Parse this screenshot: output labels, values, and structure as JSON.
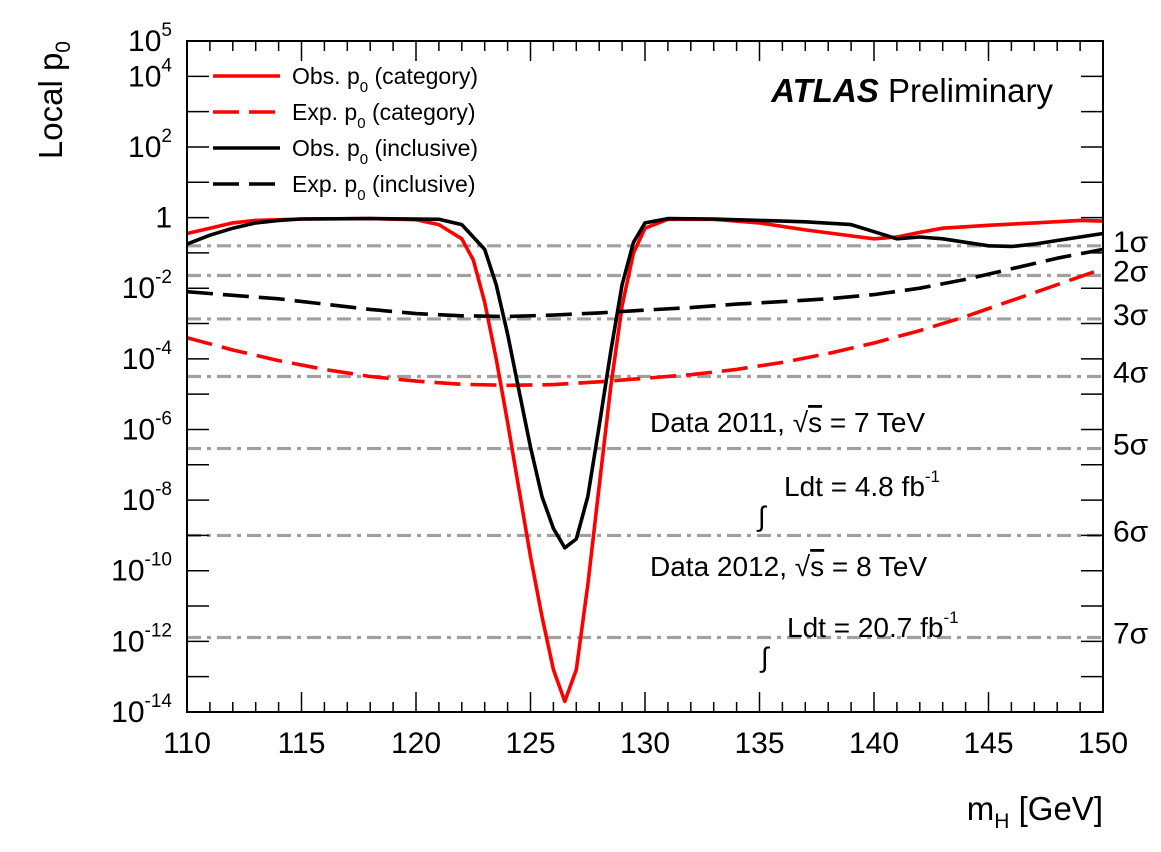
{
  "chart_data": {
    "type": "line",
    "atlas": {
      "bold": "ATLAS",
      "text": "Preliminary"
    },
    "xlabel": {
      "main": "m",
      "sub": "H",
      "unit": " [GeV]"
    },
    "ylabel": {
      "main": "Local p",
      "sub": "0"
    },
    "xlim": [
      110,
      150
    ],
    "ylog_range": [
      -14,
      5
    ],
    "x_ticks": [
      110,
      115,
      120,
      125,
      130,
      135,
      140,
      145,
      150
    ],
    "y_ticks": [
      {
        "exp": -14,
        "base": "10",
        "sup": "-14"
      },
      {
        "exp": -12,
        "base": "10",
        "sup": "-12"
      },
      {
        "exp": -10,
        "base": "10",
        "sup": "-10"
      },
      {
        "exp": -8,
        "base": "10",
        "sup": "-8"
      },
      {
        "exp": -6,
        "base": "10",
        "sup": "-6"
      },
      {
        "exp": -4,
        "base": "10",
        "sup": "-4"
      },
      {
        "exp": -2,
        "base": "10",
        "sup": "-2"
      },
      {
        "exp": 0,
        "base": "1",
        "sup": ""
      },
      {
        "exp": 2,
        "base": "10",
        "sup": "2"
      },
      {
        "exp": 4,
        "base": "10",
        "sup": "4"
      },
      {
        "exp": 5,
        "base": "10",
        "sup": "5"
      }
    ],
    "sigma_lines": [
      {
        "label": "1σ",
        "log10p": -0.8
      },
      {
        "label": "2σ",
        "log10p": -1.64
      },
      {
        "label": "3σ",
        "log10p": -2.87
      },
      {
        "label": "4σ",
        "log10p": -4.5
      },
      {
        "label": "5σ",
        "log10p": -6.54
      },
      {
        "label": "6σ",
        "log10p": -9.0
      },
      {
        "label": "7σ",
        "log10p": -11.89
      }
    ],
    "series": [
      {
        "name": "Obs. p  (category)",
        "legend": {
          "pre": "Obs. p",
          "sub": "0",
          "post": " (category)"
        },
        "color": "#ff0000",
        "dash": "solid",
        "x": [
          110,
          111,
          112,
          113,
          115,
          118,
          120,
          121,
          122,
          122.5,
          123,
          123.5,
          124,
          124.5,
          125,
          125.5,
          126,
          126.5,
          127,
          127.5,
          128,
          128.5,
          129,
          129.5,
          130,
          131,
          133,
          135,
          137,
          139,
          140,
          141,
          142,
          143,
          145,
          147,
          149,
          150
        ],
        "y": [
          -0.45,
          -0.3,
          -0.15,
          -0.08,
          -0.04,
          -0.03,
          -0.06,
          -0.2,
          -0.6,
          -1.2,
          -2.4,
          -4.0,
          -5.8,
          -7.7,
          -9.6,
          -11.3,
          -12.8,
          -13.7,
          -12.8,
          -10.4,
          -7.6,
          -4.8,
          -2.5,
          -1.0,
          -0.3,
          -0.05,
          -0.05,
          -0.15,
          -0.35,
          -0.52,
          -0.6,
          -0.55,
          -0.42,
          -0.3,
          -0.22,
          -0.15,
          -0.08,
          -0.1
        ]
      },
      {
        "name": "Exp. p  (category)",
        "legend": {
          "pre": "Exp. p",
          "sub": "0",
          "post": " (category)"
        },
        "color": "#ff0000",
        "dash": "dashed",
        "x": [
          110,
          112,
          114,
          116,
          118,
          120,
          122,
          124,
          126,
          128,
          130,
          132,
          134,
          136,
          138,
          140,
          142,
          144,
          146,
          148,
          150
        ],
        "y": [
          -3.4,
          -3.75,
          -4.05,
          -4.3,
          -4.5,
          -4.63,
          -4.72,
          -4.75,
          -4.73,
          -4.65,
          -4.55,
          -4.45,
          -4.3,
          -4.1,
          -3.85,
          -3.55,
          -3.2,
          -2.8,
          -2.35,
          -1.9,
          -1.45
        ]
      },
      {
        "name": "Obs. p  (inclusive)",
        "legend": {
          "pre": "Obs. p",
          "sub": "0",
          "post": " (inclusive)"
        },
        "color": "#000000",
        "dash": "solid",
        "x": [
          110,
          111,
          112,
          113,
          114,
          115,
          118,
          121,
          122,
          123,
          123.5,
          124,
          124.5,
          125,
          125.5,
          126,
          126.5,
          127,
          127.5,
          128,
          128.5,
          129,
          129.5,
          130,
          131,
          133,
          135,
          137,
          139,
          140,
          141,
          142,
          143,
          144,
          145,
          146,
          147,
          148,
          149,
          150
        ],
        "y": [
          -0.75,
          -0.5,
          -0.3,
          -0.15,
          -0.08,
          -0.04,
          -0.03,
          -0.05,
          -0.2,
          -0.9,
          -1.9,
          -3.3,
          -4.9,
          -6.5,
          -7.9,
          -8.8,
          -9.35,
          -9.1,
          -7.9,
          -5.9,
          -3.8,
          -1.9,
          -0.7,
          -0.15,
          -0.03,
          -0.04,
          -0.08,
          -0.12,
          -0.2,
          -0.4,
          -0.6,
          -0.55,
          -0.6,
          -0.7,
          -0.8,
          -0.82,
          -0.75,
          -0.65,
          -0.55,
          -0.45
        ]
      },
      {
        "name": "Exp. p  (inclusive)",
        "legend": {
          "pre": "Exp. p",
          "sub": "0",
          "post": " (inclusive)"
        },
        "color": "#000000",
        "dash": "dashed",
        "x": [
          110,
          112,
          114,
          116,
          118,
          120,
          122,
          124,
          126,
          128,
          130,
          132,
          134,
          136,
          138,
          140,
          142,
          144,
          146,
          148,
          150
        ],
        "y": [
          -2.1,
          -2.2,
          -2.3,
          -2.45,
          -2.6,
          -2.72,
          -2.78,
          -2.8,
          -2.76,
          -2.7,
          -2.62,
          -2.55,
          -2.45,
          -2.38,
          -2.3,
          -2.18,
          -2.0,
          -1.75,
          -1.45,
          -1.15,
          -0.9
        ]
      }
    ],
    "annotations": [
      {
        "text": "Data 2011,  ",
        "sqrt_s": "s",
        "tail": " = 7 TeV"
      },
      {
        "integral": "∫",
        "text": "Ldt = 4.8 fb",
        "sup": "-1"
      },
      {
        "text": "Data 2012,  ",
        "sqrt_s": "s",
        "tail": " = 8 TeV"
      },
      {
        "integral": "∫",
        "text": "Ldt = 20.7 fb",
        "sup": "-1"
      }
    ]
  }
}
